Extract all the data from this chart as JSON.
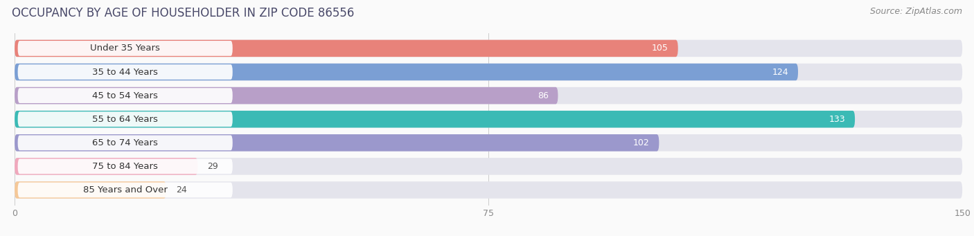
{
  "title": "OCCUPANCY BY AGE OF HOUSEHOLDER IN ZIP CODE 86556",
  "source": "Source: ZipAtlas.com",
  "categories": [
    "Under 35 Years",
    "35 to 44 Years",
    "45 to 54 Years",
    "55 to 64 Years",
    "65 to 74 Years",
    "75 to 84 Years",
    "85 Years and Over"
  ],
  "values": [
    105,
    124,
    86,
    133,
    102,
    29,
    24
  ],
  "bar_colors": [
    "#E8827A",
    "#7B9FD4",
    "#B89FC8",
    "#3BBAB5",
    "#9B98CC",
    "#F0A8BC",
    "#F5C898"
  ],
  "bar_bg_color": "#E8E8EC",
  "xlim_max": 150,
  "xticks": [
    0,
    75,
    150
  ],
  "title_fontsize": 12,
  "source_fontsize": 9,
  "label_fontsize": 9.5,
  "value_fontsize": 9,
  "fig_bg_color": "#FAFAFA",
  "bar_bg_full": "#E4E4EC"
}
